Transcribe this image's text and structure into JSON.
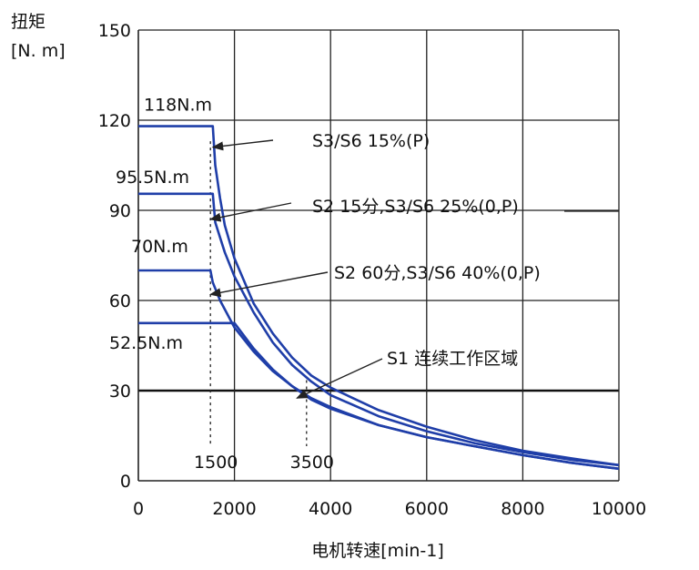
{
  "chart_data": {
    "type": "line",
    "ylabel_line1": "扭矩",
    "ylabel_line2": "[N. m]",
    "xlabel": "电机转速[min-1]",
    "xlim": [
      0,
      10000
    ],
    "ylim": [
      0,
      150
    ],
    "x_ticks": [
      0,
      2000,
      4000,
      6000,
      8000,
      10000
    ],
    "y_ticks": [
      0,
      30,
      60,
      90,
      120,
      150
    ],
    "grid": true,
    "strong_gridline_y": 30,
    "markers": [
      {
        "x": 1500,
        "label": "1500"
      },
      {
        "x": 3500,
        "label": "3500"
      }
    ],
    "torque_labels": [
      {
        "label": "118N.m",
        "value": 118
      },
      {
        "label": "95.5N.m",
        "value": 95.5
      },
      {
        "label": "70N.m",
        "value": 70
      },
      {
        "label": "52.5N.m",
        "value": 52.5
      }
    ],
    "series": [
      {
        "name": "S3/S6 15%(P)",
        "color": "#1f3ea8",
        "points": [
          [
            0,
            118
          ],
          [
            1550,
            118
          ],
          [
            1600,
            105
          ],
          [
            1700,
            94
          ],
          [
            1800,
            85
          ],
          [
            2000,
            74
          ],
          [
            2400,
            59
          ],
          [
            2800,
            49
          ],
          [
            3200,
            41
          ],
          [
            3600,
            35
          ],
          [
            4000,
            31
          ],
          [
            5000,
            23.5
          ],
          [
            6000,
            18
          ],
          [
            7000,
            13.5
          ],
          [
            8000,
            10
          ],
          [
            9000,
            7.5
          ],
          [
            10000,
            5.2
          ]
        ]
      },
      {
        "name": "S2 15分,S3/S6 25%(0,P)",
        "color": "#1f3ea8",
        "points": [
          [
            0,
            95.5
          ],
          [
            1550,
            95.5
          ],
          [
            1600,
            86
          ],
          [
            1800,
            76
          ],
          [
            2000,
            68
          ],
          [
            2400,
            56
          ],
          [
            2800,
            46
          ],
          [
            3200,
            38.5
          ],
          [
            3600,
            33
          ],
          [
            4000,
            28.5
          ],
          [
            5000,
            21.5
          ],
          [
            6000,
            16.5
          ],
          [
            7000,
            12.5
          ],
          [
            8000,
            9.5
          ],
          [
            9000,
            7
          ],
          [
            10000,
            5.2
          ]
        ]
      },
      {
        "name": "S2 60分,S3/S6 40%(0,P)",
        "color": "#1f3ea8",
        "points": [
          [
            0,
            70
          ],
          [
            1500,
            70
          ],
          [
            1550,
            66
          ],
          [
            1700,
            60
          ],
          [
            2000,
            51
          ],
          [
            2400,
            43
          ],
          [
            2800,
            36.5
          ],
          [
            3200,
            31.5
          ],
          [
            3600,
            27
          ],
          [
            4000,
            24
          ],
          [
            5000,
            18.5
          ],
          [
            6000,
            14.5
          ],
          [
            7000,
            11.5
          ],
          [
            8000,
            8.5
          ],
          [
            9000,
            6
          ],
          [
            10000,
            4
          ]
        ]
      },
      {
        "name": "S1 连续工作区域",
        "color": "#1f3ea8",
        "points": [
          [
            0,
            52.5
          ],
          [
            2000,
            52.5
          ],
          [
            2400,
            44
          ],
          [
            2800,
            37
          ],
          [
            3200,
            31.5
          ],
          [
            3600,
            27.5
          ],
          [
            4000,
            24.5
          ],
          [
            5000,
            18.5
          ],
          [
            6000,
            14.5
          ],
          [
            7000,
            11.5
          ],
          [
            8000,
            8.5
          ],
          [
            9000,
            6
          ],
          [
            10000,
            4
          ]
        ]
      }
    ],
    "annotations": [
      {
        "text": "S3/S6 15%(P)",
        "target": [
          1550,
          111
        ],
        "from": [
          4700,
          113.5
        ]
      },
      {
        "text": "S2 15分,S3/S6 25%(0,P)",
        "target": [
          1500,
          87
        ],
        "from": [
          5100,
          93
        ]
      },
      {
        "text": "S2 60分,S3/S6 40%(0,P)",
        "target": [
          1500,
          62
        ],
        "from": [
          6600,
          69
        ]
      },
      {
        "text": "S1 连续工作区域",
        "target": [
          3300,
          27.5
        ],
        "from": [
          8900,
          40
        ]
      }
    ]
  }
}
